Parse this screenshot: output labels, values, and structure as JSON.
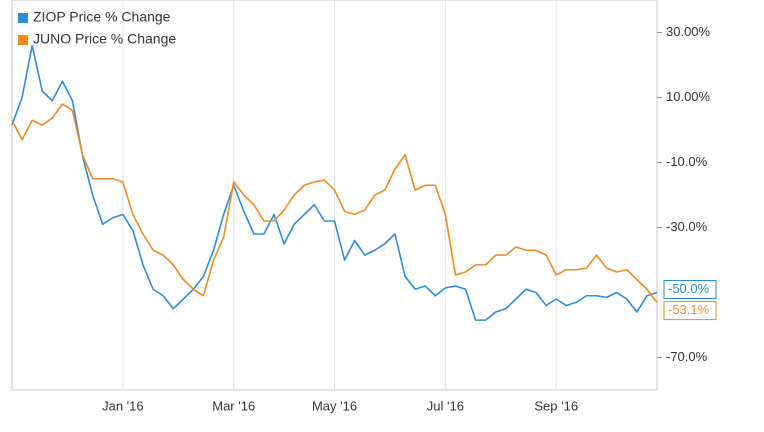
{
  "chart_data": {
    "type": "line",
    "categories": [
      null,
      null,
      null,
      null,
      null,
      null,
      null,
      null,
      null,
      null,
      null,
      "Jan '16",
      null,
      null,
      null,
      null,
      null,
      null,
      null,
      null,
      null,
      null,
      "Mar '16",
      null,
      null,
      null,
      null,
      null,
      null,
      null,
      null,
      null,
      "May '16",
      null,
      null,
      null,
      null,
      null,
      null,
      null,
      null,
      null,
      null,
      "Jul '16",
      null,
      null,
      null,
      null,
      null,
      null,
      null,
      null,
      null,
      null,
      "Sep '16",
      null,
      null,
      null,
      null,
      null,
      null,
      null,
      null,
      null,
      null
    ],
    "series": [
      {
        "name": "ZIOP Price % Change",
        "color": "#2a8ddf",
        "values": [
          1.5,
          10,
          26,
          12,
          9,
          15,
          9,
          -8,
          -20,
          -29,
          -27,
          -26,
          -31,
          -41.5,
          -49,
          -51,
          -55,
          -52,
          -49,
          -45,
          -37,
          -26,
          -17,
          -25,
          -32,
          -32,
          -26,
          -35,
          -29,
          -26,
          -23,
          -28,
          -28,
          -40,
          -34,
          -38.5,
          -37,
          -35,
          -32,
          -45,
          -49,
          -48,
          -51,
          -48.6,
          -48,
          -49,
          -58.5,
          -58.5,
          -56,
          -55,
          -52,
          -49,
          -50,
          -54,
          -52,
          -54,
          -53,
          -51,
          -51,
          -51.5,
          -50,
          -52,
          -56,
          -51,
          -50
        ],
        "value_labels": [
          null,
          null,
          null,
          null,
          null,
          null,
          null,
          null,
          null,
          null,
          null,
          null,
          null,
          null,
          null,
          null,
          null,
          null,
          null,
          null,
          null,
          null,
          null,
          null,
          null,
          null,
          null,
          null,
          null,
          null,
          null,
          null,
          null,
          null,
          null,
          null,
          null,
          null,
          null,
          null,
          null,
          null,
          null,
          null,
          null,
          null,
          null,
          null,
          null,
          null,
          null,
          null,
          null,
          null,
          null,
          null,
          null,
          null,
          null,
          null,
          null,
          null,
          null,
          null,
          "-50.0%"
        ]
      },
      {
        "name": "JUNO Price % Change",
        "color": "#f28c1f",
        "values": [
          3,
          -3,
          3,
          1.5,
          3.7,
          8,
          6,
          -7.7,
          -15,
          -15,
          -15,
          -16,
          -26,
          -32,
          -37,
          -38.5,
          -41.5,
          -46,
          -49,
          -51,
          -40,
          -33,
          -16,
          -20,
          -23,
          -28,
          -28,
          -24.6,
          -20,
          -17,
          -16,
          -15.4,
          -18.5,
          -25,
          -26,
          -24.6,
          -20,
          -18.5,
          -12,
          -7.7,
          -18.5,
          -17,
          -17,
          -26,
          -44.6,
          -43.7,
          -41.5,
          -41.5,
          -38.5,
          -38.5,
          -36,
          -37,
          -37,
          -38.5,
          -44.6,
          -43,
          -43,
          -42.5,
          -38.5,
          -42.5,
          -43.7,
          -43,
          -46,
          -49,
          -53.1
        ],
        "value_labels": [
          null,
          null,
          null,
          null,
          null,
          null,
          null,
          null,
          null,
          null,
          null,
          null,
          null,
          null,
          null,
          null,
          null,
          null,
          null,
          null,
          null,
          null,
          null,
          null,
          null,
          null,
          null,
          null,
          null,
          null,
          null,
          null,
          null,
          null,
          null,
          null,
          null,
          null,
          null,
          null,
          null,
          null,
          null,
          null,
          null,
          null,
          null,
          null,
          null,
          null,
          null,
          null,
          null,
          null,
          null,
          null,
          null,
          null,
          null,
          null,
          null,
          null,
          null,
          null,
          "-53.1%"
        ]
      }
    ],
    "ylim": [
      -80,
      40
    ],
    "yticks": [
      {
        "value": 30,
        "label": "30.00%"
      },
      {
        "value": 10,
        "label": "10.00%"
      },
      {
        "value": -10,
        "label": "-10.0%"
      },
      {
        "value": -30,
        "label": "-30.0%"
      },
      {
        "value": -70,
        "label": "-70.0%"
      }
    ],
    "legend": "top-left"
  }
}
